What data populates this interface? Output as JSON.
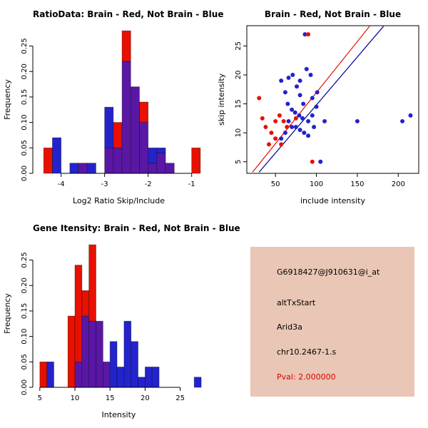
{
  "info": {
    "lines": [
      "G6918427@J910631@i_at",
      "altTxStart",
      "Arid3a",
      "chr10.2467-1.s"
    ],
    "pval": "Pval: 2.000000",
    "bg": "#E9C6B5",
    "pval_color": "#E00000"
  },
  "chart_data": [
    {
      "id": "ratio-histogram",
      "type": "histogram",
      "title": "RatioData: Brain - Red, Not Brain - Blue",
      "xlabel": "Log2 Ratio Skip/Include",
      "ylabel": "Frequency",
      "legend": {
        "Brain": "red",
        "Not Brain": "blue"
      },
      "xlim": [
        -4.65,
        -0.7
      ],
      "ylim": [
        0,
        0.29
      ],
      "xticks": [
        -4,
        -3,
        -2,
        -1
      ],
      "xtick_labels": [
        "-4",
        "-3",
        "-2",
        "-1"
      ],
      "yticks": [
        0,
        0.05,
        0.1,
        0.15,
        0.2,
        0.25
      ],
      "ytick_labels": [
        "0.00",
        "0.05",
        "0.10",
        "0.15",
        "0.20",
        "0.25"
      ],
      "bin_width": 0.2,
      "colors": {
        "red": "#E81000",
        "blue": "#2323CD",
        "overlap": "#5A17A6"
      },
      "bins": [
        {
          "x": -4.4,
          "r": 0.05,
          "b": 0
        },
        {
          "x": -4.2,
          "r": 0,
          "b": 0.07
        },
        {
          "x": -3.8,
          "r": 0,
          "b": 0.02
        },
        {
          "x": -3.6,
          "r": 0.02,
          "b": 0.02
        },
        {
          "x": -3.4,
          "r": 0,
          "b": 0.02
        },
        {
          "x": -3.0,
          "r": 0.05,
          "b": 0.13
        },
        {
          "x": -2.8,
          "r": 0.1,
          "b": 0.05
        },
        {
          "x": -2.6,
          "r": 0.28,
          "b": 0.22
        },
        {
          "x": -2.4,
          "r": 0.17,
          "b": 0.17
        },
        {
          "x": -2.2,
          "r": 0.14,
          "b": 0.1
        },
        {
          "x": -2.0,
          "r": 0.02,
          "b": 0.05
        },
        {
          "x": -1.8,
          "r": 0.04,
          "b": 0.05
        },
        {
          "x": -1.6,
          "r": 0.02,
          "b": 0.02
        },
        {
          "x": -1.0,
          "r": 0.05,
          "b": 0
        }
      ]
    },
    {
      "id": "intensity-scatter",
      "type": "scatter",
      "title": "Brain - Red, Not Brain - Blue",
      "xlabel": "include intensity",
      "ylabel": "skip intensity",
      "xlim": [
        15,
        225
      ],
      "ylim": [
        3,
        28.5
      ],
      "xticks": [
        50,
        100,
        150,
        200
      ],
      "xtick_labels": [
        "50",
        "100",
        "150",
        "200"
      ],
      "yticks": [
        5,
        10,
        15,
        20,
        25
      ],
      "ytick_labels": [
        "5",
        "10",
        "15",
        "20",
        "25"
      ],
      "series": [
        {
          "name": "Not Brain",
          "color": "#2222CC",
          "points": [
            [
              57,
              19
            ],
            [
              62,
              17
            ],
            [
              66,
              19.5
            ],
            [
              71,
              20
            ],
            [
              76,
              18
            ],
            [
              80,
              16.5
            ],
            [
              84,
              15
            ],
            [
              70,
              14
            ],
            [
              74,
              13.5
            ],
            [
              79,
              13
            ],
            [
              83,
              12.5
            ],
            [
              90,
              12
            ],
            [
              95,
              13
            ],
            [
              100,
              14.5
            ],
            [
              66,
              12
            ],
            [
              70,
              11
            ],
            [
              75,
              11
            ],
            [
              80,
              10.5
            ],
            [
              85,
              10
            ],
            [
              90,
              9.5
            ],
            [
              62,
              10
            ],
            [
              57,
              9
            ],
            [
              95,
              16
            ],
            [
              101,
              17
            ],
            [
              110,
              12
            ],
            [
              150,
              12
            ],
            [
              205,
              12
            ],
            [
              215,
              13
            ],
            [
              86,
              27
            ],
            [
              105,
              5
            ],
            [
              88,
              21
            ],
            [
              93,
              20
            ],
            [
              80,
              19
            ],
            [
              65,
              15
            ],
            [
              97,
              11
            ]
          ]
        },
        {
          "name": "Brain",
          "color": "#E81000",
          "points": [
            [
              30,
              16
            ],
            [
              34,
              12.5
            ],
            [
              38,
              11
            ],
            [
              45,
              10
            ],
            [
              50,
              12
            ],
            [
              55,
              13
            ],
            [
              60,
              12
            ],
            [
              64,
              11
            ],
            [
              50,
              9
            ],
            [
              42,
              8
            ],
            [
              90,
              27
            ],
            [
              95,
              5
            ],
            [
              75,
              12.5
            ],
            [
              57,
              8
            ]
          ]
        }
      ],
      "fit_lines": [
        {
          "name": "brain-fit-line",
          "color": "#E81000",
          "x1": 22,
          "y1": 3.2,
          "x2": 165,
          "y2": 28.4
        },
        {
          "name": "notbrain-fit-line",
          "color": "#00008B",
          "x1": 30,
          "y1": 3.2,
          "x2": 182,
          "y2": 28.4
        }
      ]
    },
    {
      "id": "gene-intensity-histogram",
      "type": "histogram",
      "title": "Gene Itensity: Brain - Red, Not Brain - Blue",
      "xlabel": "Intensity",
      "ylabel": "Frequency",
      "legend": {
        "Brain": "red",
        "Not Brain": "blue"
      },
      "xlim": [
        4,
        28.5
      ],
      "ylim": [
        0,
        0.29
      ],
      "xticks": [
        5,
        10,
        15,
        20,
        25
      ],
      "xtick_labels": [
        "5",
        "10",
        "15",
        "20",
        "25"
      ],
      "yticks": [
        0,
        0.05,
        0.1,
        0.15,
        0.2,
        0.25
      ],
      "ytick_labels": [
        "0.00",
        "0.05",
        "0.10",
        "0.15",
        "0.20",
        "0.25"
      ],
      "bin_width": 1,
      "colors": {
        "red": "#E81000",
        "blue": "#2323CD",
        "overlap": "#5A17A6"
      },
      "bins": [
        {
          "x": 5,
          "r": 0.05,
          "b": 0
        },
        {
          "x": 6,
          "r": 0,
          "b": 0.05
        },
        {
          "x": 9,
          "r": 0.14,
          "b": 0
        },
        {
          "x": 10,
          "r": 0.24,
          "b": 0.05
        },
        {
          "x": 11,
          "r": 0.19,
          "b": 0.14
        },
        {
          "x": 12,
          "r": 0.28,
          "b": 0.13
        },
        {
          "x": 13,
          "r": 0.13,
          "b": 0.13
        },
        {
          "x": 14,
          "r": 0.05,
          "b": 0.05
        },
        {
          "x": 15,
          "r": 0,
          "b": 0.09
        },
        {
          "x": 16,
          "r": 0,
          "b": 0.04
        },
        {
          "x": 17,
          "r": 0,
          "b": 0.13
        },
        {
          "x": 18,
          "r": 0,
          "b": 0.09
        },
        {
          "x": 19,
          "r": 0,
          "b": 0.02
        },
        {
          "x": 20,
          "r": 0,
          "b": 0.04
        },
        {
          "x": 21,
          "r": 0,
          "b": 0.04
        },
        {
          "x": 27,
          "r": 0,
          "b": 0.02
        }
      ]
    }
  ]
}
